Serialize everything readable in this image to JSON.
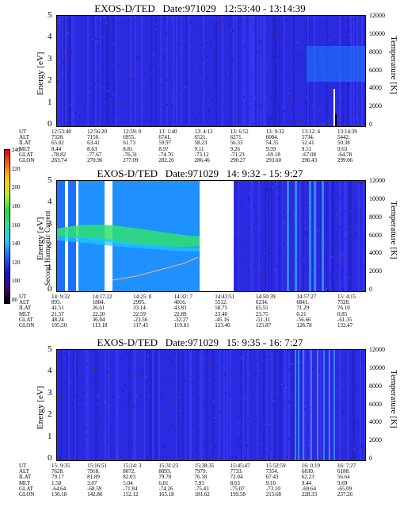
{
  "colorbar": {
    "title": "Second Harmonic Current",
    "ticks": [
      "240",
      "220",
      "200",
      "180",
      "160",
      "140",
      "120",
      "100",
      "80"
    ],
    "colors": [
      "#000000",
      "#3a0a6e",
      "#1010e0",
      "#1e60ff",
      "#1ec8ff",
      "#20e0b0",
      "#1ee040",
      "#b0f020",
      "#ffd000",
      "#ff7000",
      "#e00000"
    ]
  },
  "axis_labels": {
    "left": "Energy [eV]",
    "right": "Temperature [K]"
  },
  "left_ticks": [
    "5",
    "4",
    "3",
    "2",
    "1",
    "0"
  ],
  "right_ticks": [
    "12000",
    "10000",
    "8000",
    "6000",
    "4000",
    "2000",
    "0"
  ],
  "row_labels": [
    "UT",
    "ALT",
    "ILAT",
    "MLT",
    "GLAT",
    "GLON"
  ],
  "panels": [
    {
      "title": "EXOS-D/TED   Date:971029   12:53:40 - 13:14:39",
      "columns": [
        [
          "12:53:40",
          "7328.",
          "65.02",
          "8.44",
          "-78.82",
          "263.74"
        ],
        [
          "12:56:20",
          "7150.",
          "63.41",
          "8.63",
          "-77.67",
          "270.96"
        ],
        [
          "12:59: 0",
          "6955.",
          "61.73",
          "8.81",
          "-76.31",
          "277.09"
        ],
        [
          "13: 1:40",
          "6741.",
          "59.97",
          "8.97",
          "-74.76",
          "282.26"
        ],
        [
          "13: 4:12",
          "6521.",
          "58.23",
          "9.11",
          "-73.12",
          "286.46"
        ],
        [
          "13: 6:52",
          "6271.",
          "56.33",
          "9.26",
          "-71.23",
          "290.27"
        ],
        [
          "13: 9:32",
          "6004.",
          "54.35",
          "9.39",
          "-69.18",
          "293.60"
        ],
        [
          "13:12: 4",
          "5734.",
          "52.41",
          "9.51",
          "-67.08",
          "296.43"
        ],
        [
          "13:14:39",
          "5442.",
          "50.38",
          "9.63",
          "-64.78",
          "299.06"
        ]
      ]
    },
    {
      "title": "EXOS-D/TED   Date:971029   14: 9:32 - 15: 9:27",
      "columns": [
        [
          "14: 9:32",
          "893.",
          "41.51",
          "21.57",
          "48.24",
          "105.50"
        ],
        [
          "14:17:22",
          "1884.",
          "26.61",
          "22.20",
          "36.04",
          "113.18"
        ],
        [
          "14:25: 0",
          "2995.",
          "33.14",
          "22.59",
          "-23.56",
          "117.45"
        ],
        [
          "14:32: 7",
          "4016.",
          "43.83",
          "22.89",
          "-32.27",
          "119.81"
        ],
        [
          "14:43:51",
          "5512.",
          "58.75",
          "23.40",
          "-45.16",
          "123.46"
        ],
        [
          "14:50:39",
          "6234.",
          "65.55",
          "23.75",
          "-51.31",
          "125.87"
        ],
        [
          "14:57:27",
          "6841.",
          "71.29",
          "0.21",
          "-56.66",
          "128.78"
        ],
        [
          "15: 4:15",
          "7328.",
          "76.10",
          "0.85",
          "-61.35",
          "132.47"
        ]
      ]
    },
    {
      "title": "EXOS-D/TED   Date:971029   15: 9:35 - 16: 7:27",
      "columns": [
        [
          "15: 9:35",
          "7628.",
          "79.17",
          "1.58",
          "-64.64",
          "136.18"
        ],
        [
          "15:16:51",
          "7918.",
          "81.89",
          "3.07",
          "-68.59",
          "142.86"
        ],
        [
          "15:24: 3",
          "8072.",
          "82.03",
          "5.04",
          "-71.84",
          "152.12"
        ],
        [
          "15:31:23",
          "8093.",
          "79.70",
          "6.81",
          "-74.26",
          "165.18"
        ],
        [
          "15:38:35",
          "7979.",
          "76.18",
          "7.93",
          "-75.43",
          "181.62"
        ],
        [
          "15:45:47",
          "7733.",
          "72.04",
          "8.63",
          "-75.07",
          "199.58"
        ],
        [
          "15:52:59",
          "7354.",
          "67.43",
          "9.10",
          "-73.10",
          "215.68"
        ],
        [
          "16: 0:19",
          "6830.",
          "62.23",
          "9.44",
          "-69.64",
          "228.33"
        ],
        [
          "16: 7:27",
          "6188.",
          "56.64",
          "9.69",
          "-65.09",
          "237.26"
        ]
      ]
    }
  ],
  "chart_data": [
    {
      "type": "heatmap",
      "title": "EXOS-D/TED   Date:971029   12:53:40 - 13:14:39",
      "ylabel": "Energy [eV]",
      "y2label": "Temperature [K]",
      "ylim": [
        0,
        5
      ],
      "y2lim": [
        0,
        12000
      ],
      "x": [
        "12:53:40",
        "12:56:20",
        "12:59: 0",
        "13: 1:40",
        "13: 4:12",
        "13: 6:52",
        "13: 9:32",
        "13:12: 4",
        "13:14:39"
      ]
    },
    {
      "type": "heatmap",
      "title": "EXOS-D/TED   Date:971029   14: 9:32 - 15: 9:27",
      "ylabel": "Energy [eV]",
      "y2label": "Temperature [K]",
      "ylim": [
        0,
        5
      ],
      "y2lim": [
        0,
        12000
      ],
      "x": [
        "14: 9:32",
        "14:17:22",
        "14:25: 0",
        "14:32: 7",
        "14:43:51",
        "14:50:39",
        "14:57:27",
        "15: 4:15"
      ]
    },
    {
      "type": "heatmap",
      "title": "EXOS-D/TED   Date:971029   15: 9:35 - 16: 7:27",
      "ylabel": "Energy [eV]",
      "y2label": "Temperature [K]",
      "ylim": [
        0,
        5
      ],
      "y2lim": [
        0,
        12000
      ],
      "x": [
        "15: 9:35",
        "15:16:51",
        "15:24: 3",
        "15:31:23",
        "15:38:35",
        "15:45:47",
        "15:52:59",
        "16: 0:19",
        "16: 7:27"
      ]
    }
  ]
}
